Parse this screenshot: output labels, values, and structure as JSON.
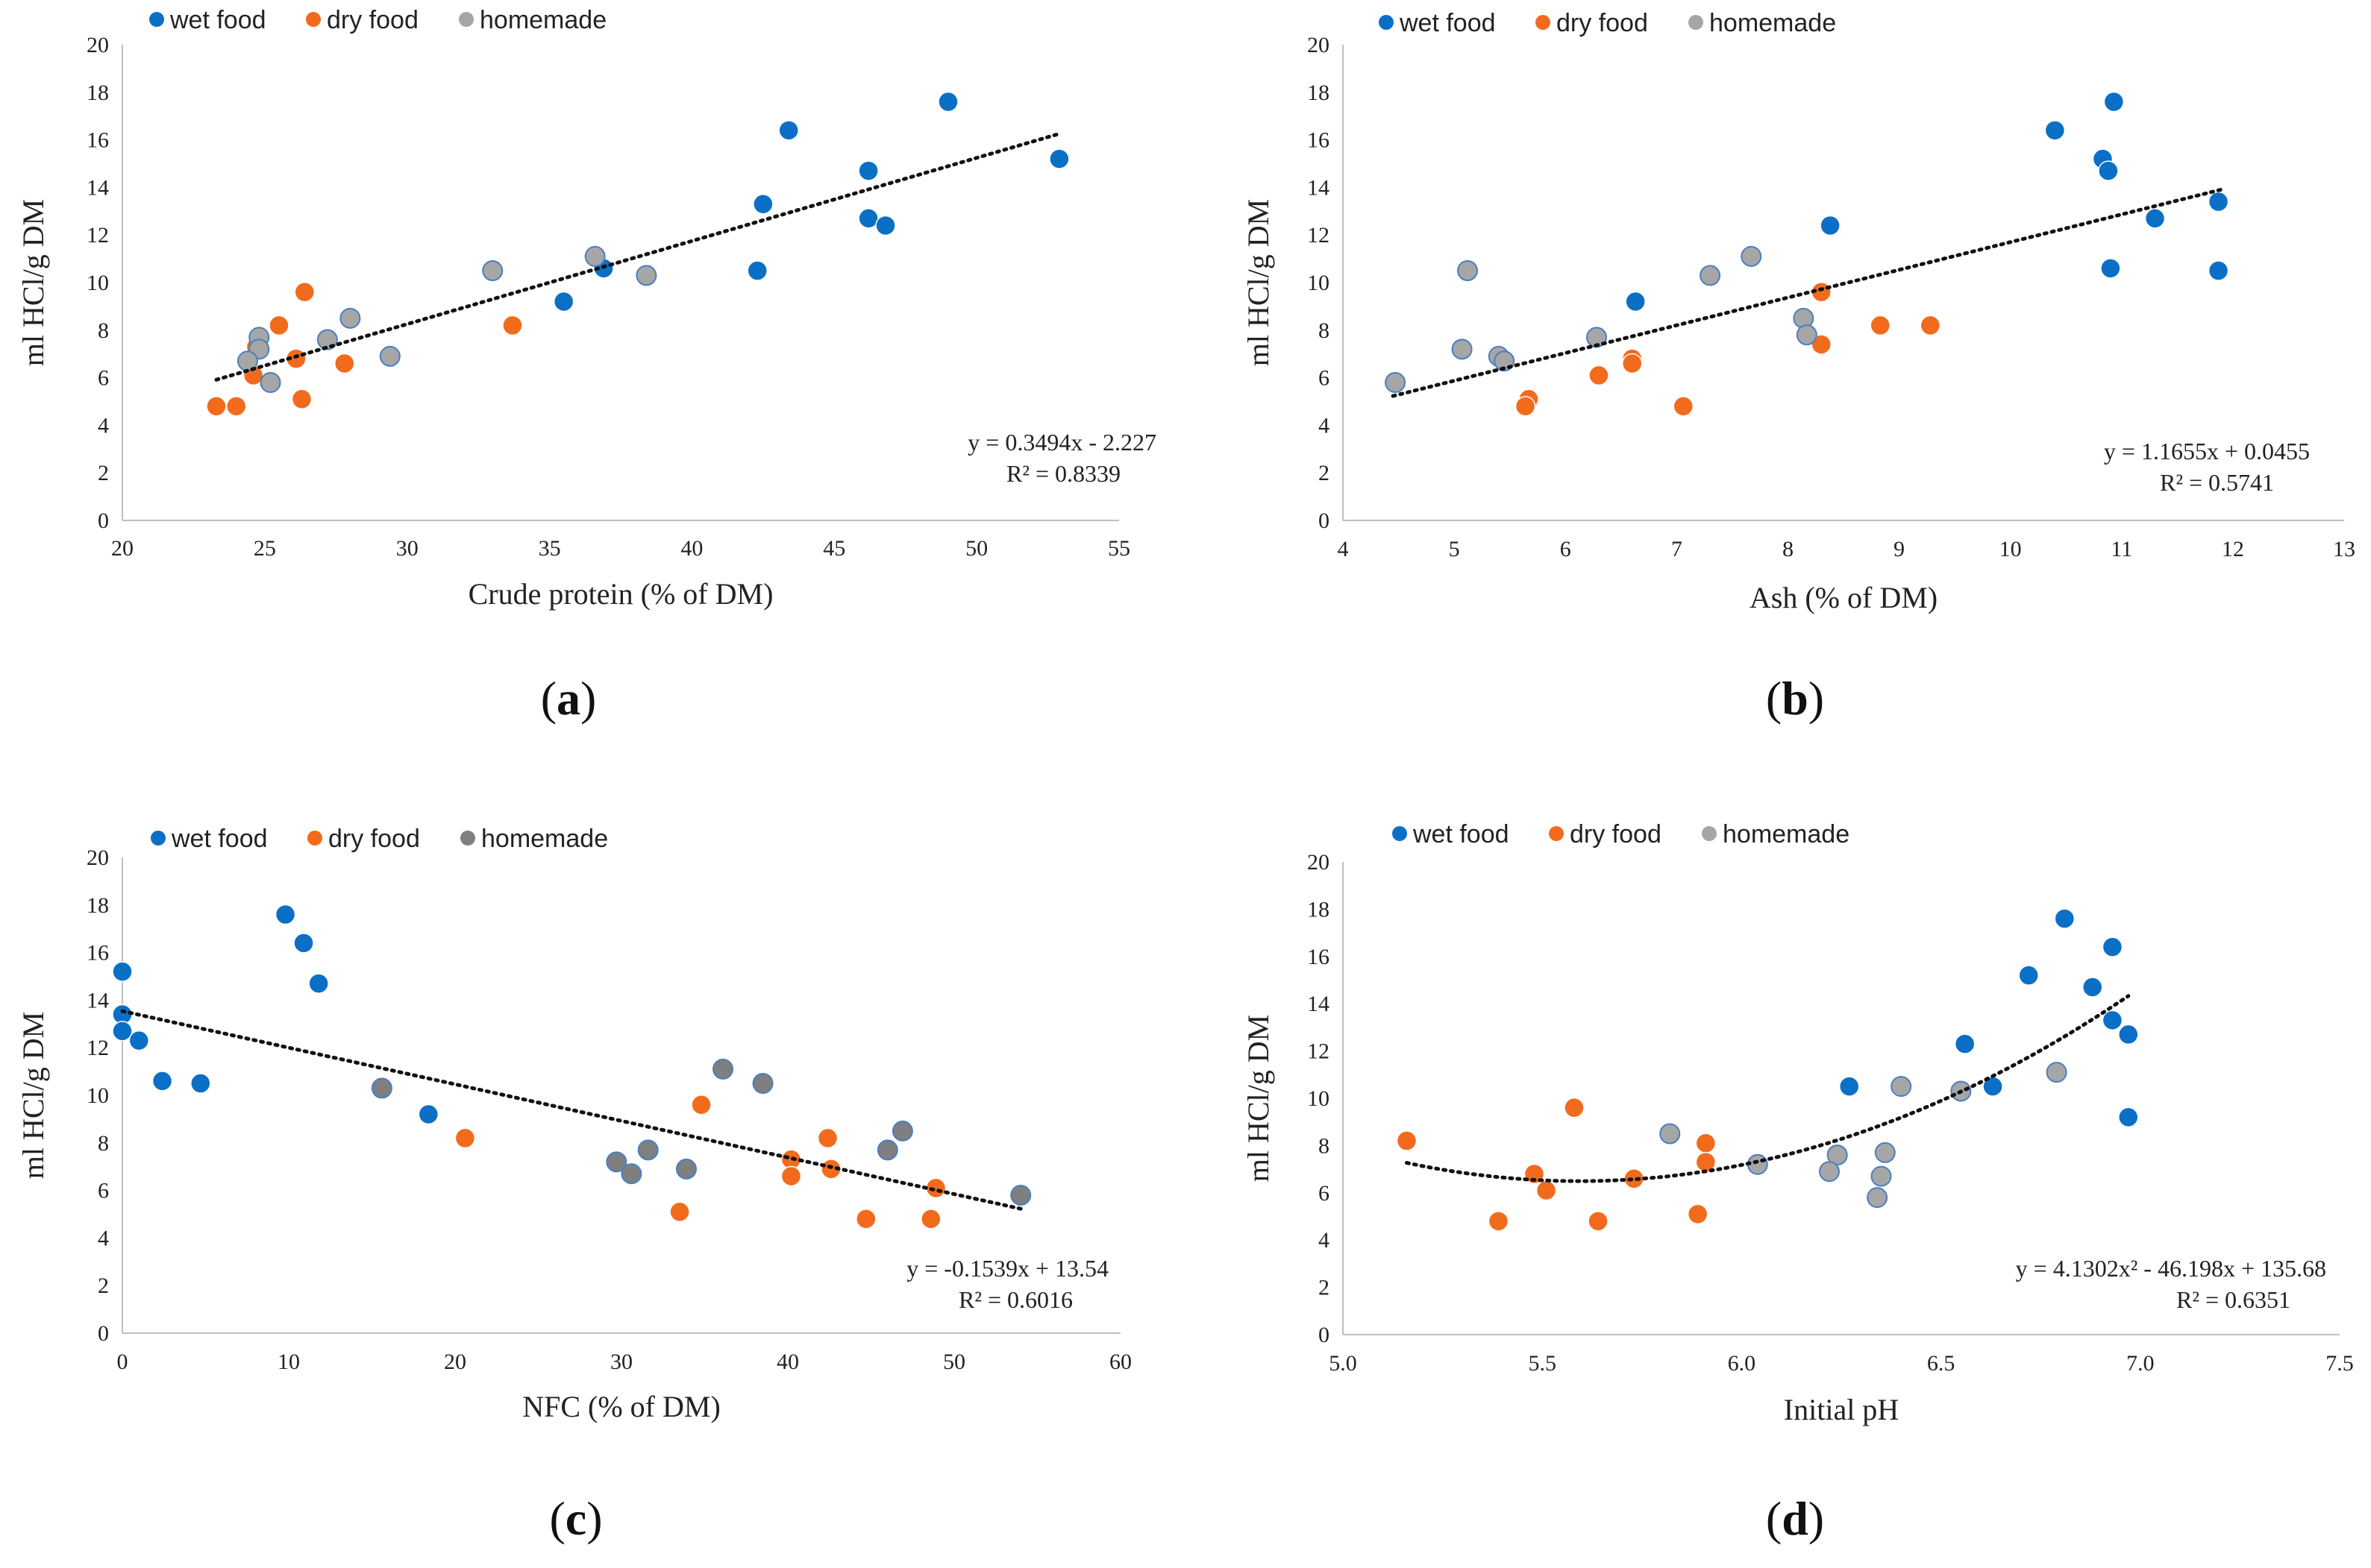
{
  "colors": {
    "wet": "#0b6fc6",
    "dry": "#f26b1d",
    "homemade": "#a6a6a6",
    "homemade_c": "#7f7f7f",
    "homemade_edge": "#4a7fc0"
  },
  "chart_data": [
    {
      "type": "scatter",
      "label_text": "a",
      "ylabel": "ml HCl/g DM",
      "xlabel": "Crude protein (% of DM)",
      "xlim": [
        20,
        55
      ],
      "xticks": [
        20,
        25,
        30,
        35,
        40,
        45,
        50,
        55
      ],
      "ylim": [
        0,
        20
      ],
      "yticks": [
        0,
        2,
        4,
        6,
        8,
        10,
        12,
        14,
        16,
        18,
        20
      ],
      "x_decimals": 0,
      "legend": [
        "wet food",
        "dry food",
        "homemade"
      ],
      "equation": "y = 0.3494x - 2.227",
      "r2": "R² = 0.8339",
      "trend": {
        "kind": "linear",
        "coef": [
          -2.227,
          0.3494
        ],
        "x_from": 23.3,
        "x_to": 52.9
      },
      "series": [
        {
          "name": "wet food",
          "color_key": "wet",
          "points": [
            [
              49.0,
              17.6
            ],
            [
              43.4,
              16.4
            ],
            [
              52.9,
              15.2
            ],
            [
              46.2,
              14.7
            ],
            [
              42.5,
              13.3
            ],
            [
              46.2,
              12.7
            ],
            [
              46.8,
              12.4
            ],
            [
              42.3,
              10.5
            ],
            [
              36.9,
              10.6
            ],
            [
              35.5,
              9.2
            ]
          ]
        },
        {
          "name": "dry food",
          "color_key": "dry",
          "points": [
            [
              26.4,
              9.6
            ],
            [
              25.5,
              8.2
            ],
            [
              33.7,
              8.2
            ],
            [
              24.7,
              7.3
            ],
            [
              26.1,
              6.8
            ],
            [
              27.8,
              6.6
            ],
            [
              24.6,
              6.1
            ],
            [
              26.3,
              5.1
            ],
            [
              23.3,
              4.8
            ],
            [
              24.0,
              4.8
            ]
          ]
        },
        {
          "name": "homemade",
          "color_key": "homemade",
          "points": [
            [
              36.6,
              11.1
            ],
            [
              33.0,
              10.5
            ],
            [
              38.4,
              10.3
            ],
            [
              28.0,
              8.5
            ],
            [
              24.8,
              7.7
            ],
            [
              27.2,
              7.6
            ],
            [
              24.8,
              7.2
            ],
            [
              29.4,
              6.9
            ],
            [
              24.4,
              6.7
            ],
            [
              25.2,
              5.8
            ]
          ]
        }
      ]
    },
    {
      "type": "scatter",
      "label_text": "b",
      "ylabel": "ml HCl/g DM",
      "xlabel": "Ash (% of DM)",
      "xlim": [
        4,
        13
      ],
      "xticks": [
        4,
        5,
        6,
        7,
        8,
        9,
        10,
        11,
        12,
        13
      ],
      "ylim": [
        0,
        20
      ],
      "yticks": [
        0,
        2,
        4,
        6,
        8,
        10,
        12,
        14,
        16,
        18,
        20
      ],
      "x_decimals": 0,
      "legend": [
        "wet food",
        "dry food",
        "homemade"
      ],
      "equation": "y = 1.1655x + 0.0455",
      "r2": "R² = 0.5741",
      "trend": {
        "kind": "linear",
        "coef": [
          0.0455,
          1.1655
        ],
        "x_from": 4.45,
        "x_to": 11.9
      },
      "series": [
        {
          "name": "wet food",
          "color_key": "wet",
          "points": [
            [
              10.93,
              17.6
            ],
            [
              10.4,
              16.4
            ],
            [
              10.83,
              15.2
            ],
            [
              10.88,
              14.7
            ],
            [
              11.87,
              13.4
            ],
            [
              11.3,
              12.7
            ],
            [
              8.38,
              12.4
            ],
            [
              10.9,
              10.6
            ],
            [
              11.87,
              10.5
            ],
            [
              6.63,
              9.2
            ]
          ]
        },
        {
          "name": "dry food",
          "color_key": "dry",
          "points": [
            [
              8.3,
              9.6
            ],
            [
              8.83,
              8.2
            ],
            [
              9.28,
              8.2
            ],
            [
              8.3,
              7.4
            ],
            [
              6.6,
              6.8
            ],
            [
              6.6,
              6.6
            ],
            [
              6.3,
              6.1
            ],
            [
              5.67,
              5.1
            ],
            [
              5.64,
              4.8
            ],
            [
              7.06,
              4.8
            ]
          ]
        },
        {
          "name": "homemade",
          "color_key": "homemade",
          "points": [
            [
              7.67,
              11.1
            ],
            [
              5.12,
              10.5
            ],
            [
              7.3,
              10.3
            ],
            [
              8.14,
              8.5
            ],
            [
              8.17,
              7.8
            ],
            [
              6.28,
              7.7
            ],
            [
              5.07,
              7.2
            ],
            [
              5.4,
              6.9
            ],
            [
              5.45,
              6.7
            ],
            [
              4.47,
              5.8
            ]
          ]
        }
      ]
    },
    {
      "type": "scatter",
      "label_text": "c",
      "ylabel": "ml HCl/g DM",
      "xlabel": "NFC (% of DM)",
      "xlim": [
        0,
        60
      ],
      "xticks": [
        0,
        10,
        20,
        30,
        40,
        50,
        60
      ],
      "ylim": [
        0,
        20
      ],
      "yticks": [
        0,
        2,
        4,
        6,
        8,
        10,
        12,
        14,
        16,
        18,
        20
      ],
      "x_decimals": 0,
      "legend": [
        "wet food",
        "dry food",
        "homemade"
      ],
      "equation": "y = -0.1539x + 13.54",
      "r2": "R² = 0.6016",
      "trend": {
        "kind": "linear",
        "coef": [
          13.54,
          -0.1539
        ],
        "x_from": 0,
        "x_to": 54.0
      },
      "series": [
        {
          "name": "wet food",
          "color_key": "wet",
          "points": [
            [
              9.8,
              17.6
            ],
            [
              10.9,
              16.4
            ],
            [
              0.0,
              15.2
            ],
            [
              11.8,
              14.7
            ],
            [
              0.0,
              13.4
            ],
            [
              0.0,
              12.7
            ],
            [
              1.0,
              12.3
            ],
            [
              2.4,
              10.6
            ],
            [
              4.7,
              10.5
            ],
            [
              18.4,
              9.2
            ]
          ]
        },
        {
          "name": "dry food",
          "color_key": "dry",
          "points": [
            [
              34.8,
              9.6
            ],
            [
              20.6,
              8.2
            ],
            [
              42.4,
              8.2
            ],
            [
              40.2,
              7.3
            ],
            [
              42.6,
              6.9
            ],
            [
              40.2,
              6.6
            ],
            [
              48.9,
              6.1
            ],
            [
              33.5,
              5.1
            ],
            [
              44.7,
              4.8
            ],
            [
              48.6,
              4.8
            ]
          ]
        },
        {
          "name": "homemade",
          "color_key": "homemade_c",
          "points": [
            [
              36.1,
              11.1
            ],
            [
              38.5,
              10.5
            ],
            [
              15.6,
              10.3
            ],
            [
              46.9,
              8.5
            ],
            [
              46.0,
              7.7
            ],
            [
              31.6,
              7.7
            ],
            [
              29.7,
              7.2
            ],
            [
              33.9,
              6.9
            ],
            [
              30.6,
              6.7
            ],
            [
              54.0,
              5.8
            ]
          ]
        }
      ]
    },
    {
      "type": "scatter",
      "label_text": "d",
      "ylabel": "ml HCl/g DM",
      "xlabel": "Initial pH",
      "xlim": [
        5.0,
        7.5
      ],
      "xticks": [
        5.0,
        5.5,
        6.0,
        6.5,
        7.0,
        7.5
      ],
      "ylim": [
        0,
        20
      ],
      "yticks": [
        0,
        2,
        4,
        6,
        8,
        10,
        12,
        14,
        16,
        18,
        20
      ],
      "x_decimals": 1,
      "legend": [
        "wet food",
        "dry food",
        "homemade"
      ],
      "equation": "y = 4.1302x² - 46.198x + 135.68",
      "r2": "R² = 0.6351",
      "trend": {
        "kind": "poly2",
        "coef": [
          135.68,
          -46.198,
          4.1302
        ],
        "x_from": 5.16,
        "x_to": 6.97
      },
      "series": [
        {
          "name": "wet food",
          "color_key": "wet",
          "points": [
            [
              6.81,
              17.6
            ],
            [
              6.93,
              16.4
            ],
            [
              6.72,
              15.2
            ],
            [
              6.88,
              14.7
            ],
            [
              6.93,
              13.3
            ],
            [
              6.97,
              12.7
            ],
            [
              6.56,
              12.3
            ],
            [
              6.27,
              10.5
            ],
            [
              6.63,
              10.5
            ],
            [
              6.97,
              9.2
            ]
          ]
        },
        {
          "name": "dry food",
          "color_key": "dry",
          "points": [
            [
              5.58,
              9.6
            ],
            [
              5.16,
              8.2
            ],
            [
              5.91,
              8.1
            ],
            [
              5.91,
              7.3
            ],
            [
              5.48,
              6.8
            ],
            [
              5.73,
              6.6
            ],
            [
              5.51,
              6.1
            ],
            [
              5.89,
              5.1
            ],
            [
              5.39,
              4.8
            ],
            [
              5.64,
              4.8
            ]
          ]
        },
        {
          "name": "homemade",
          "color_key": "homemade",
          "points": [
            [
              6.79,
              11.1
            ],
            [
              6.4,
              10.5
            ],
            [
              6.55,
              10.3
            ],
            [
              5.82,
              8.5
            ],
            [
              6.36,
              7.7
            ],
            [
              6.24,
              7.6
            ],
            [
              6.04,
              7.2
            ],
            [
              6.22,
              6.9
            ],
            [
              6.35,
              6.7
            ],
            [
              6.34,
              5.8
            ]
          ]
        }
      ]
    }
  ]
}
